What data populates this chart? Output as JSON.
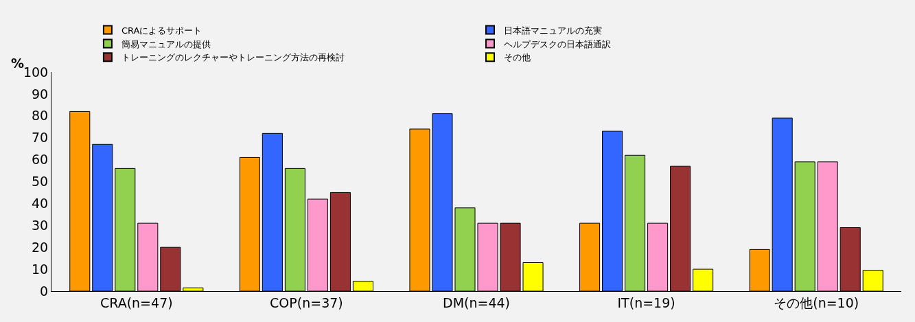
{
  "chart_data": {
    "type": "bar",
    "ylabel": "%",
    "categories": [
      "CRA(n=47)",
      "COP(n=37)",
      "DM(n=44)",
      "IT(n=19)",
      "その他(n=10)"
    ],
    "series": [
      {
        "name": "CRAによるサポート",
        "color": "#ff9900",
        "values": [
          82,
          61,
          74,
          31,
          19
        ]
      },
      {
        "name": "日本語マニュアルの充実",
        "color": "#3366ff",
        "values": [
          67,
          72,
          81,
          73,
          79
        ]
      },
      {
        "name": "簡易マニュアルの提供",
        "color": "#92d050",
        "values": [
          56,
          56,
          38,
          62,
          59
        ]
      },
      {
        "name": "ヘルプデスクの日本語通訳",
        "color": "#ff99cc",
        "values": [
          31,
          42,
          31,
          31,
          59
        ]
      },
      {
        "name": "トレーニングのレクチャーやトレーニング方法の再検討",
        "color": "#993333",
        "values": [
          20,
          45,
          31,
          57,
          29
        ]
      },
      {
        "name": "その他",
        "color": "#ffff00",
        "values": [
          1.5,
          4.5,
          13,
          10,
          9.5
        ]
      }
    ],
    "ylim": [
      0,
      100
    ],
    "yticks": [
      0,
      10,
      20,
      30,
      40,
      50,
      60,
      70,
      80,
      90,
      100
    ],
    "grid": false,
    "legend": "top"
  }
}
